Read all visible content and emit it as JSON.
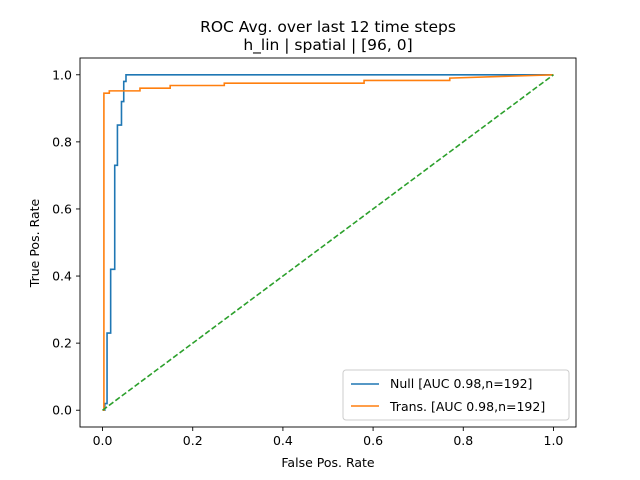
{
  "chart_data": {
    "type": "line",
    "title": "ROC Avg. over last 12 time steps",
    "subtitle": "h_lin | spatial | [96, 0]",
    "xlabel": "False Pos. Rate",
    "ylabel": "True Pos. Rate",
    "xlim": [
      -0.05,
      1.05
    ],
    "ylim": [
      -0.05,
      1.05
    ],
    "xticks": [
      "0.0",
      "0.2",
      "0.4",
      "0.6",
      "0.8",
      "1.0"
    ],
    "yticks": [
      "0.0",
      "0.2",
      "0.4",
      "0.6",
      "0.8",
      "1.0"
    ],
    "grid": false,
    "legend_position": "lower-right",
    "series": [
      {
        "name": "Null [AUC 0.98,n=192]",
        "color": "#1f77b4",
        "style": "solid",
        "x": [
          0.0,
          0.005,
          0.005,
          0.01,
          0.01,
          0.018,
          0.018,
          0.027,
          0.027,
          0.033,
          0.033,
          0.042,
          0.042,
          0.047,
          0.047,
          0.052,
          0.052,
          1.0
        ],
        "y": [
          0.0,
          0.0,
          0.02,
          0.02,
          0.23,
          0.23,
          0.42,
          0.42,
          0.73,
          0.73,
          0.85,
          0.85,
          0.92,
          0.92,
          0.98,
          0.98,
          1.0,
          1.0
        ]
      },
      {
        "name": "Trans. [AUC 0.98,n=192]",
        "color": "#ff7f0e",
        "style": "solid",
        "x": [
          0.0,
          0.003,
          0.003,
          0.015,
          0.015,
          0.083,
          0.083,
          0.15,
          0.15,
          0.27,
          0.27,
          0.58,
          0.58,
          0.77,
          0.77,
          1.0
        ],
        "y": [
          0.0,
          0.0,
          0.945,
          0.945,
          0.952,
          0.952,
          0.96,
          0.96,
          0.968,
          0.968,
          0.975,
          0.975,
          0.983,
          0.983,
          0.99,
          1.0
        ]
      },
      {
        "color": "#2ca02c",
        "style": "dashed",
        "x": [
          0.0,
          1.0
        ],
        "y": [
          0.0,
          1.0
        ]
      }
    ]
  }
}
